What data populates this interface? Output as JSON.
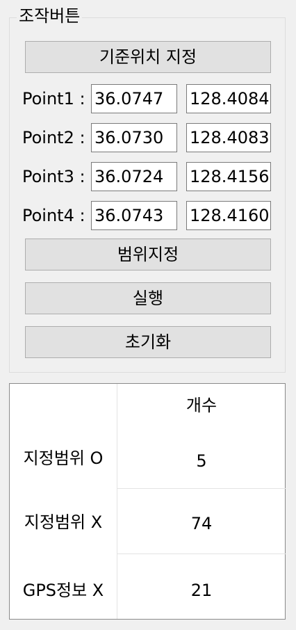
{
  "group": {
    "title": "조작버튼",
    "set_base_button": "기준위치 지정",
    "points": [
      {
        "label": "Point1 :",
        "lat": "36.0747",
        "lon": "128.4084"
      },
      {
        "label": "Point2 :",
        "lat": "36.0730",
        "lon": "128.4083"
      },
      {
        "label": "Point3 :",
        "lat": "36.0724",
        "lon": "128.4156"
      },
      {
        "label": "Point4 :",
        "lat": "36.0743",
        "lon": "128.4160"
      }
    ],
    "set_range_button": "범위지정",
    "run_button": "실행",
    "reset_button": "초기화"
  },
  "table": {
    "column_header": "개수",
    "rows": [
      {
        "label": "지정범위 O",
        "value": "5"
      },
      {
        "label": "지정범위 X",
        "value": "74"
      },
      {
        "label": "GPS정보 X",
        "value": "21"
      }
    ]
  }
}
